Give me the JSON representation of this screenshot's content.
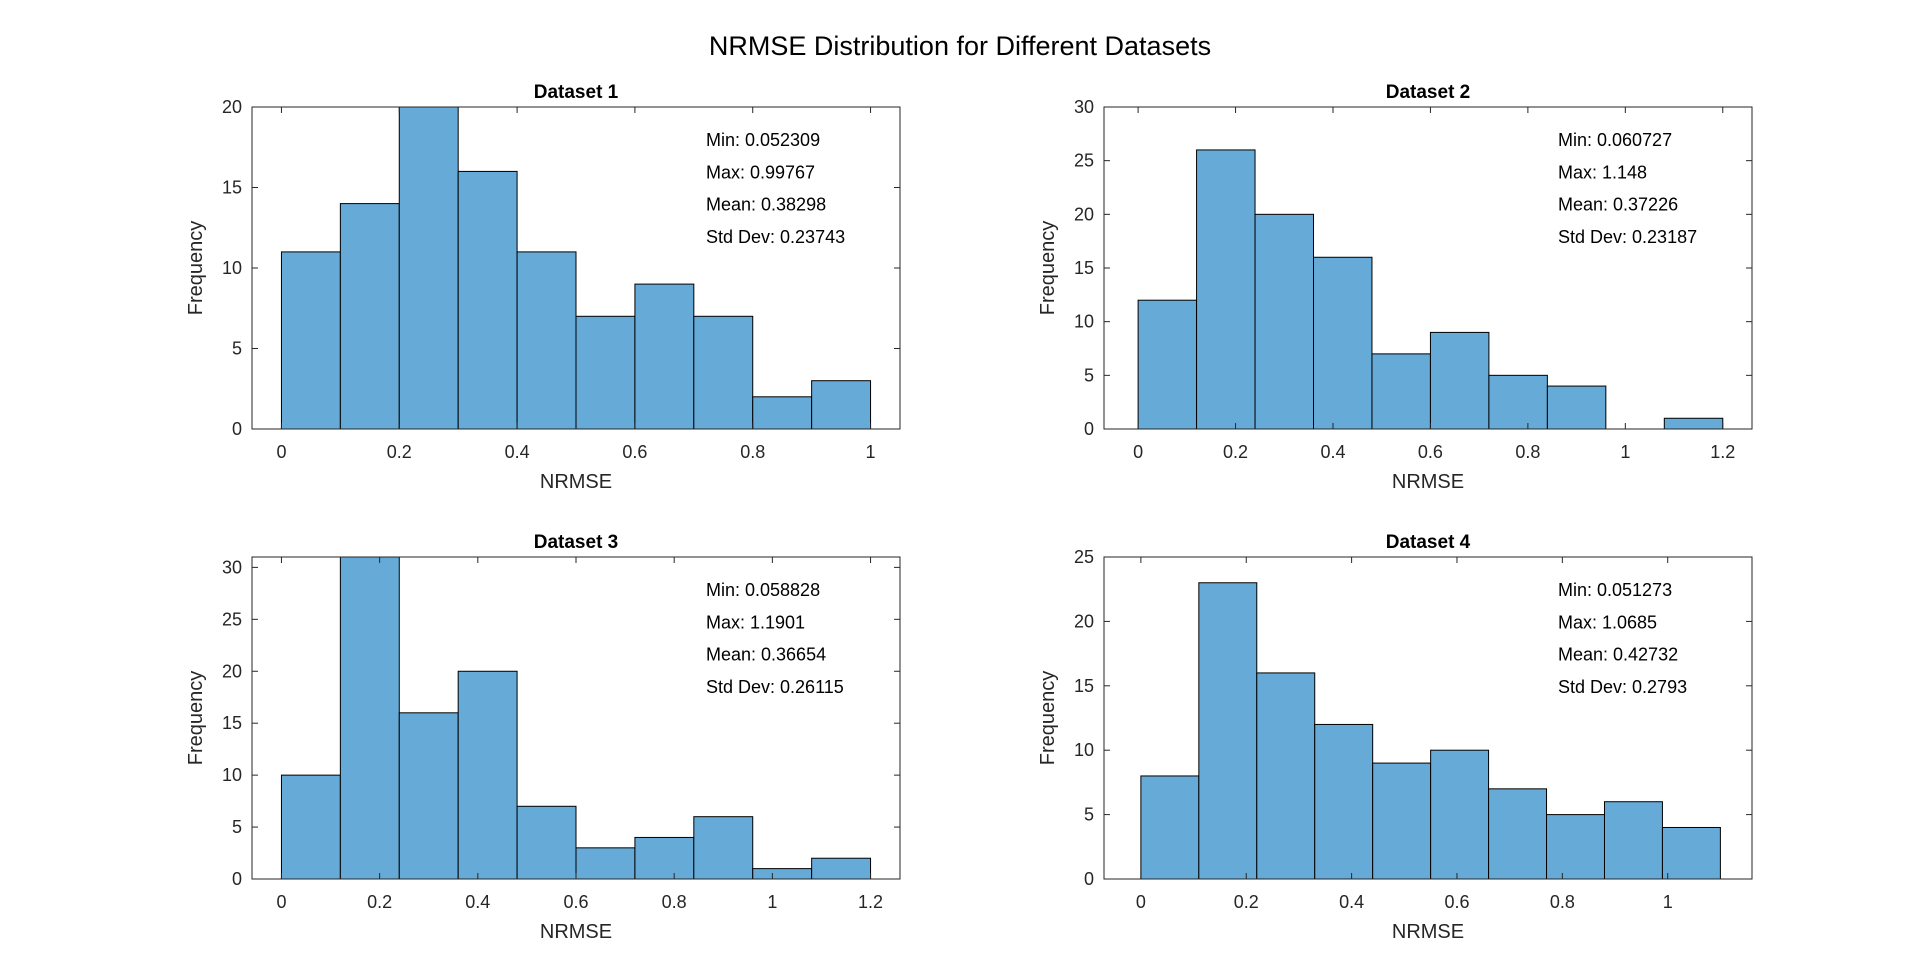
{
  "figure": {
    "title": "NRMSE Distribution for Different Datasets",
    "bar_color": "#66aad7",
    "edge_color": "#000000"
  },
  "chart_data": [
    {
      "type": "bar",
      "title": "Dataset 1",
      "xlabel": "NRMSE",
      "ylabel": "Frequency",
      "xlim": [
        -0.05,
        1.05
      ],
      "ylim": [
        0,
        20
      ],
      "xticks": [
        "0",
        "0.2",
        "0.4",
        "0.6",
        "0.8",
        "1"
      ],
      "yticks": [
        "0",
        "5",
        "10",
        "15",
        "20"
      ],
      "bin_edges": [
        0,
        0.1,
        0.2,
        0.3,
        0.4,
        0.5,
        0.6,
        0.7,
        0.8,
        0.9,
        1.0
      ],
      "values": [
        11,
        14,
        20,
        16,
        11,
        7,
        9,
        7,
        2,
        3
      ],
      "stats": [
        "Min: 0.052309",
        "Max: 0.99767",
        "Mean: 0.38298",
        "Std Dev: 0.23743"
      ]
    },
    {
      "type": "bar",
      "title": "Dataset 2",
      "xlabel": "NRMSE",
      "ylabel": "Frequency",
      "xlim": [
        -0.07,
        1.26
      ],
      "ylim": [
        0,
        30
      ],
      "xticks": [
        "0",
        "0.2",
        "0.4",
        "0.6",
        "0.8",
        "1",
        "1.2"
      ],
      "yticks": [
        "0",
        "5",
        "10",
        "15",
        "20",
        "25",
        "30"
      ],
      "bin_edges": [
        0,
        0.12,
        0.24,
        0.36,
        0.48,
        0.6,
        0.72,
        0.84,
        0.96,
        1.08,
        1.2
      ],
      "values": [
        12,
        26,
        20,
        16,
        7,
        9,
        5,
        4,
        0,
        1
      ],
      "stats": [
        "Min: 0.060727",
        "Max: 1.148",
        "Mean: 0.37226",
        "Std Dev: 0.23187"
      ]
    },
    {
      "type": "bar",
      "title": "Dataset 3",
      "xlabel": "NRMSE",
      "ylabel": "Frequency",
      "xlim": [
        -0.06,
        1.26
      ],
      "ylim": [
        0,
        31
      ],
      "xticks": [
        "0",
        "0.2",
        "0.4",
        "0.6",
        "0.8",
        "1",
        "1.2"
      ],
      "yticks": [
        "0",
        "5",
        "10",
        "15",
        "20",
        "25",
        "30"
      ],
      "bin_edges": [
        0,
        0.12,
        0.24,
        0.36,
        0.48,
        0.6,
        0.72,
        0.84,
        0.96,
        1.08,
        1.2
      ],
      "values": [
        10,
        31,
        16,
        20,
        7,
        3,
        4,
        6,
        1,
        2
      ],
      "stats": [
        "Min: 0.058828",
        "Max: 1.1901",
        "Mean: 0.36654",
        "Std Dev: 0.26115"
      ]
    },
    {
      "type": "bar",
      "title": "Dataset 4",
      "xlabel": "NRMSE",
      "ylabel": "Frequency",
      "xlim": [
        -0.07,
        1.16
      ],
      "ylim": [
        0,
        25
      ],
      "xticks": [
        "0",
        "0.2",
        "0.4",
        "0.6",
        "0.8",
        "1"
      ],
      "yticks": [
        "0",
        "5",
        "10",
        "15",
        "20",
        "25"
      ],
      "bin_edges": [
        0,
        0.11,
        0.22,
        0.33,
        0.44,
        0.55,
        0.66,
        0.77,
        0.88,
        0.99,
        1.1
      ],
      "values": [
        8,
        23,
        16,
        12,
        9,
        10,
        7,
        5,
        6,
        4
      ],
      "stats": [
        "Min: 0.051273",
        "Max: 1.0685",
        "Mean: 0.42732",
        "Std Dev: 0.2793"
      ]
    }
  ]
}
